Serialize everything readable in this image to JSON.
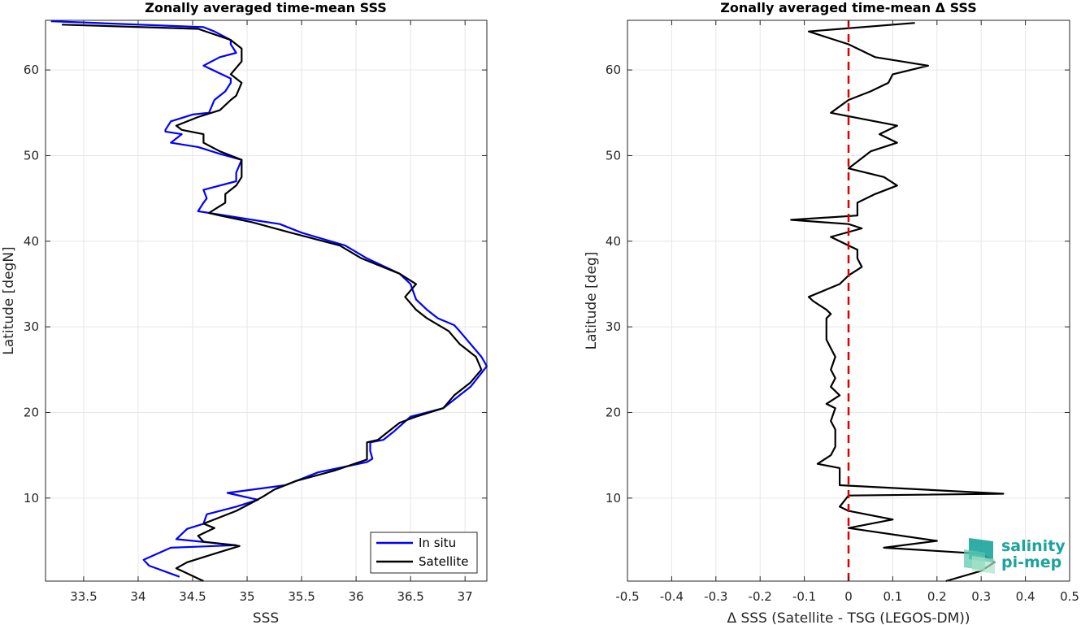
{
  "colors": {
    "insitu": "#0000ff",
    "satellite": "#000000",
    "zero_line": "#dd0000",
    "grid": "#e6e6e6",
    "logo": "#1ba39c"
  },
  "chart_data": [
    {
      "type": "line",
      "title": "Zonally averaged time-mean SSS",
      "xlabel": "SSS",
      "ylabel": "Latitude [degN]",
      "xlim": [
        33.15,
        37.2
      ],
      "ylim": [
        0.3,
        65.8
      ],
      "xticks": [
        33.5,
        34,
        34.5,
        35,
        35.5,
        36,
        36.5,
        37
      ],
      "xtick_labels": [
        "33.5",
        "34",
        "34.5",
        "35",
        "35.5",
        "36",
        "36.5",
        "37"
      ],
      "yticks": [
        10,
        20,
        30,
        40,
        50,
        60
      ],
      "ytick_labels": [
        "10",
        "20",
        "30",
        "40",
        "50",
        "60"
      ],
      "grid": true,
      "legend_position": "bottom-right",
      "series": [
        {
          "name": "In situ",
          "color": "#0000ff",
          "points": [
            [
              34.38,
              0.8
            ],
            [
              34.1,
              2.1
            ],
            [
              34.05,
              2.8
            ],
            [
              34.3,
              4.2
            ],
            [
              34.9,
              4.5
            ],
            [
              34.35,
              5.2
            ],
            [
              34.45,
              6.4
            ],
            [
              34.6,
              7
            ],
            [
              34.63,
              8.1
            ],
            [
              34.9,
              9
            ],
            [
              35.1,
              9.8
            ],
            [
              34.82,
              10.6
            ],
            [
              35.35,
              11.5
            ],
            [
              35.65,
              13
            ],
            [
              36.1,
              14.2
            ],
            [
              36.15,
              14.6
            ],
            [
              36.13,
              15.5
            ],
            [
              36.13,
              16.5
            ],
            [
              36.25,
              16.8
            ],
            [
              36.35,
              17.8
            ],
            [
              36.5,
              19.5
            ],
            [
              36.8,
              20.5
            ],
            [
              36.95,
              22
            ],
            [
              37.05,
              23
            ],
            [
              37.2,
              25.4
            ],
            [
              37.15,
              26.5
            ],
            [
              37.05,
              28
            ],
            [
              36.95,
              29.5
            ],
            [
              36.9,
              30.2
            ],
            [
              36.75,
              31
            ],
            [
              36.65,
              32
            ],
            [
              36.55,
              33.2
            ],
            [
              36.5,
              35
            ],
            [
              36.4,
              36.2
            ],
            [
              36.1,
              38
            ],
            [
              35.9,
              39.5
            ],
            [
              35.5,
              41
            ],
            [
              35.3,
              42
            ],
            [
              35.05,
              42.5
            ],
            [
              34.65,
              43.3
            ],
            [
              34.55,
              43.5
            ],
            [
              34.6,
              44.5
            ],
            [
              34.63,
              45
            ],
            [
              34.6,
              46
            ],
            [
              34.9,
              47
            ],
            [
              34.9,
              48
            ],
            [
              34.95,
              49.5
            ],
            [
              34.75,
              50.2
            ],
            [
              34.55,
              51
            ],
            [
              34.3,
              51.5
            ],
            [
              34.4,
              52.5
            ],
            [
              34.25,
              52.8
            ],
            [
              34.25,
              53
            ],
            [
              34.3,
              54
            ],
            [
              34.5,
              54.8
            ],
            [
              34.65,
              55
            ],
            [
              34.7,
              56.5
            ],
            [
              34.8,
              57.5
            ],
            [
              34.85,
              58.5
            ],
            [
              34.85,
              59
            ],
            [
              34.6,
              60.5
            ],
            [
              34.75,
              61.5
            ],
            [
              34.9,
              62
            ],
            [
              34.85,
              63
            ],
            [
              34.85,
              63.5
            ],
            [
              34.7,
              64.5
            ],
            [
              34.6,
              65
            ],
            [
              33.2,
              65.7
            ]
          ]
        },
        {
          "name": "Satellite",
          "color": "#000000",
          "points": [
            [
              34.6,
              0.3
            ],
            [
              34.45,
              1.2
            ],
            [
              34.35,
              1.8
            ],
            [
              34.45,
              2.5
            ],
            [
              34.7,
              3.5
            ],
            [
              34.93,
              4.4
            ],
            [
              34.6,
              4.9
            ],
            [
              34.55,
              5.6
            ],
            [
              34.7,
              6.5
            ],
            [
              34.6,
              7
            ],
            [
              34.8,
              8
            ],
            [
              34.9,
              8.5
            ],
            [
              35.05,
              9.5
            ],
            [
              35.15,
              10.2
            ],
            [
              35.25,
              11
            ],
            [
              35.45,
              12
            ],
            [
              35.8,
              13.2
            ],
            [
              36.1,
              14.5
            ],
            [
              36.1,
              15
            ],
            [
              36.1,
              16.5
            ],
            [
              36.2,
              16.8
            ],
            [
              36.3,
              17.8
            ],
            [
              36.4,
              18.8
            ],
            [
              36.55,
              19.5
            ],
            [
              36.8,
              20.5
            ],
            [
              36.9,
              22
            ],
            [
              37.05,
              23.5
            ],
            [
              37.15,
              25
            ],
            [
              37.1,
              26.5
            ],
            [
              36.95,
              28
            ],
            [
              36.85,
              29.5
            ],
            [
              36.65,
              31
            ],
            [
              36.55,
              32
            ],
            [
              36.45,
              33.5
            ],
            [
              36.55,
              35
            ],
            [
              36.4,
              36.2
            ],
            [
              36.05,
              38
            ],
            [
              35.85,
              39.5
            ],
            [
              35.4,
              41
            ],
            [
              35.05,
              42.2
            ],
            [
              34.75,
              43
            ],
            [
              34.65,
              43.3
            ],
            [
              34.8,
              44.5
            ],
            [
              34.8,
              45.5
            ],
            [
              34.9,
              46.5
            ],
            [
              34.95,
              47.5
            ],
            [
              34.95,
              49.5
            ],
            [
              34.85,
              50
            ],
            [
              34.75,
              50.5
            ],
            [
              34.6,
              51.5
            ],
            [
              34.6,
              52.5
            ],
            [
              34.4,
              53
            ],
            [
              34.35,
              53.5
            ],
            [
              34.55,
              54.5
            ],
            [
              34.75,
              55.3
            ],
            [
              34.85,
              56.5
            ],
            [
              34.9,
              57
            ],
            [
              34.95,
              58.5
            ],
            [
              34.85,
              59.5
            ],
            [
              34.95,
              61
            ],
            [
              34.95,
              62.5
            ],
            [
              34.85,
              63.5
            ],
            [
              34.55,
              64.8
            ],
            [
              33.3,
              65.3
            ]
          ]
        }
      ]
    },
    {
      "type": "line",
      "title": "Zonally averaged time-mean Δ SSS",
      "xlabel": "Δ SSS (Satellite - TSG (LEGOS-DM))",
      "ylabel": "Latitude [deg]",
      "xlim": [
        -0.5,
        0.5
      ],
      "ylim": [
        0.3,
        65.8
      ],
      "xticks": [
        -0.5,
        -0.4,
        -0.3,
        -0.2,
        -0.1,
        0,
        0.1,
        0.2,
        0.3,
        0.4,
        0.5
      ],
      "xtick_labels": [
        "-0.5",
        "-0.4",
        "-0.3",
        "-0.2",
        "-0.1",
        "0",
        "0.1",
        "0.2",
        "0.3",
        "0.4",
        "0.5"
      ],
      "yticks": [
        10,
        20,
        30,
        40,
        50,
        60
      ],
      "ytick_labels": [
        "10",
        "20",
        "30",
        "40",
        "50",
        "60"
      ],
      "grid": true,
      "reference_line": 0,
      "series": [
        {
          "color": "#000000",
          "points": [
            [
              0.22,
              0.3
            ],
            [
              0.3,
              1.5
            ],
            [
              0.33,
              2.5
            ],
            [
              0.3,
              3.5
            ],
            [
              0.08,
              4.2
            ],
            [
              0.2,
              5
            ],
            [
              0.0,
              6.5
            ],
            [
              0.1,
              7.5
            ],
            [
              0.0,
              8.5
            ],
            [
              -0.02,
              9
            ],
            [
              0.0,
              10.3
            ],
            [
              0.35,
              10.5
            ],
            [
              -0.02,
              11.5
            ],
            [
              -0.02,
              13.5
            ],
            [
              -0.07,
              14
            ],
            [
              -0.04,
              15
            ],
            [
              -0.03,
              16
            ],
            [
              -0.03,
              18
            ],
            [
              -0.04,
              19
            ],
            [
              -0.03,
              20.5
            ],
            [
              -0.05,
              21
            ],
            [
              -0.02,
              22
            ],
            [
              -0.04,
              23
            ],
            [
              -0.03,
              24
            ],
            [
              -0.04,
              25
            ],
            [
              -0.03,
              26.5
            ],
            [
              -0.04,
              27.5
            ],
            [
              -0.05,
              28.5
            ],
            [
              -0.05,
              30
            ],
            [
              -0.05,
              31
            ],
            [
              -0.04,
              31.5
            ],
            [
              -0.05,
              32
            ],
            [
              -0.08,
              33
            ],
            [
              -0.09,
              33.5
            ],
            [
              -0.02,
              35
            ],
            [
              0.0,
              36
            ],
            [
              0.03,
              37
            ],
            [
              0.02,
              38
            ],
            [
              0.02,
              39
            ],
            [
              0.0,
              39.5
            ],
            [
              -0.04,
              40.5
            ],
            [
              0.03,
              41.5
            ],
            [
              0.0,
              42
            ],
            [
              -0.13,
              42.5
            ],
            [
              0.02,
              43
            ],
            [
              0.02,
              44.5
            ],
            [
              0.06,
              45.5
            ],
            [
              0.11,
              46.5
            ],
            [
              0.08,
              47.5
            ],
            [
              0.0,
              48.5
            ],
            [
              0.05,
              50.5
            ],
            [
              0.11,
              51.5
            ],
            [
              0.07,
              52.5
            ],
            [
              0.11,
              53.5
            ],
            [
              -0.04,
              55
            ],
            [
              0.0,
              56.5
            ],
            [
              0.05,
              57.5
            ],
            [
              0.09,
              58.5
            ],
            [
              0.1,
              59.5
            ],
            [
              0.18,
              60.5
            ],
            [
              0.06,
              61.5
            ],
            [
              0.0,
              63
            ],
            [
              -0.09,
              64.5
            ],
            [
              0.15,
              65.5
            ]
          ]
        }
      ]
    }
  ],
  "legend": {
    "entries": [
      "In situ",
      "Satellite"
    ]
  },
  "logo": {
    "line1": "salinity",
    "line2": "pi-mep"
  }
}
